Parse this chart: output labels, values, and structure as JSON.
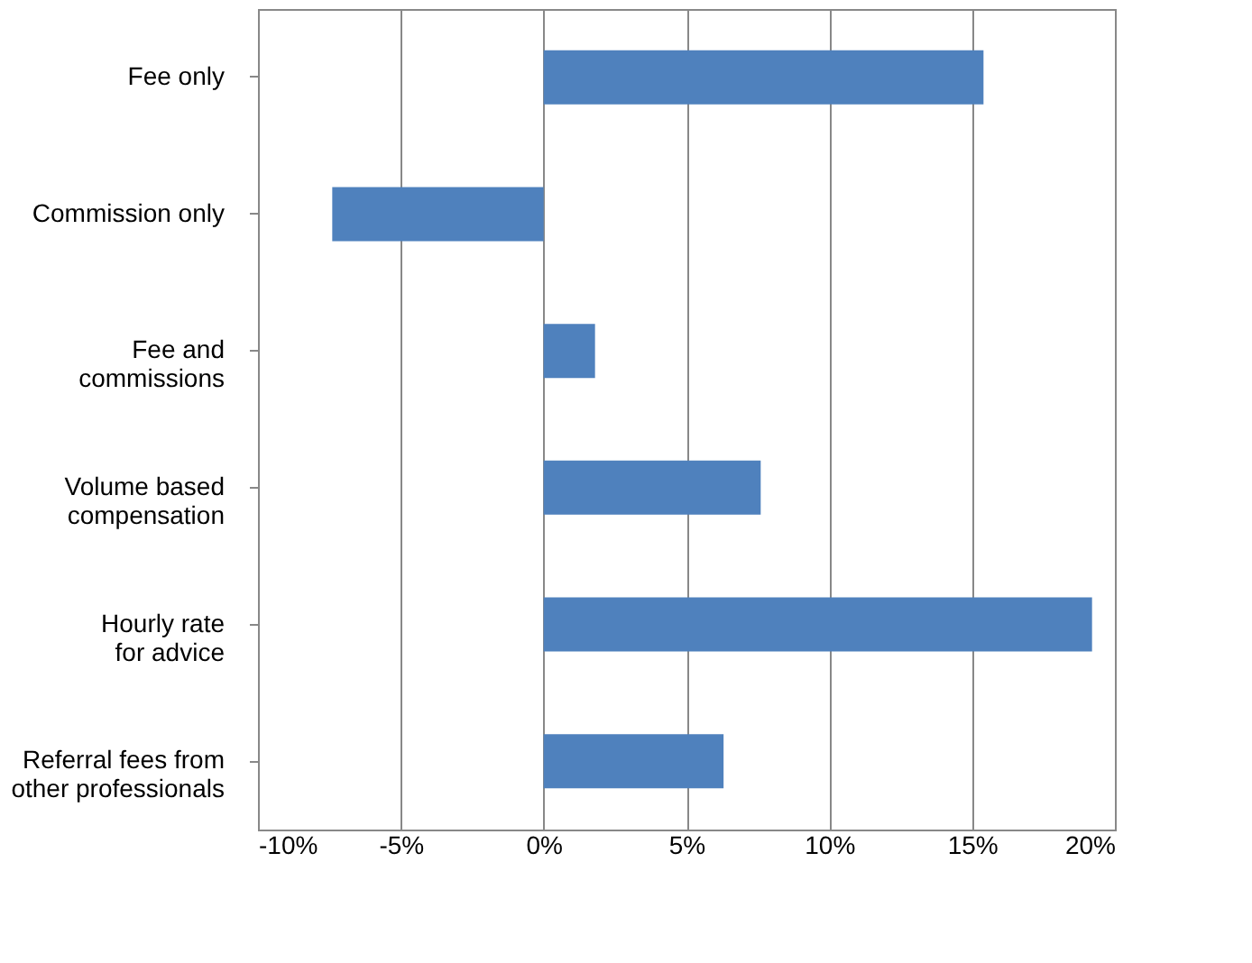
{
  "chart_data": {
    "type": "bar",
    "orientation": "horizontal",
    "categories": [
      "Fee only",
      "Commission only",
      "Fee and\ncommissions",
      "Volume based\ncompensation",
      "Hourly rate\nfor advice",
      "Referral fees from\nother professionals"
    ],
    "values": [
      15.4,
      -7.4,
      1.8,
      7.6,
      19.2,
      6.3
    ],
    "color": "#4f81bd",
    "xlim": [
      -10,
      20
    ],
    "xticks": [
      {
        "value": -10,
        "label": "-10%"
      },
      {
        "value": -5,
        "label": "-5%"
      },
      {
        "value": 0,
        "label": "0%"
      },
      {
        "value": 5,
        "label": "5%"
      },
      {
        "value": 10,
        "label": "10%"
      },
      {
        "value": 15,
        "label": "15%"
      },
      {
        "value": 20,
        "label": "20%"
      }
    ],
    "grid": "x"
  }
}
